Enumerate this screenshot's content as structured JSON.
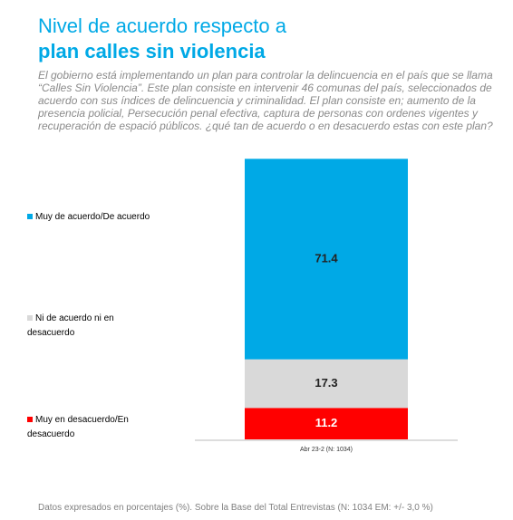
{
  "chart_data": {
    "type": "stacked_bar",
    "title": "Nivel de acuerdo respecto a",
    "title_bold": "plan calles sin violencia",
    "subtitle": "El gobierno está implementando un plan para controlar la delincuencia en el país que se llama “Calles Sin Violencia”. Este plan consiste en intervenir 46 comunas del país, seleccionados de acuerdo con sus índices de delincuencia y criminalidad. El plan consiste en; aumento de la presencia policial, Persecución penal efectiva, captura de personas con ordenes vigentes y recuperación de espació públicos. ¿qué tan de acuerdo o en desacuerdo estas con este plan?",
    "categories": [
      "Abr 23-2 (N: 1034)"
    ],
    "series": [
      {
        "name": "Muy de acuerdo/De acuerdo",
        "color": "#00a9e6",
        "values": [
          71.4
        ]
      },
      {
        "name": "Ni de acuerdo ni en desacuerdo",
        "color": "#d9d9d9",
        "values": [
          17.3
        ]
      },
      {
        "name": "Muy en desacuerdo/En desacuerdo",
        "color": "#ff0000",
        "values": [
          11.2
        ]
      }
    ],
    "ylim": [
      0,
      100
    ],
    "note": "Datos expresados en porcentajes (%). Sobre la Base del Total Entrevistas (N: 1034  EM: +/- 3,0 %)"
  }
}
